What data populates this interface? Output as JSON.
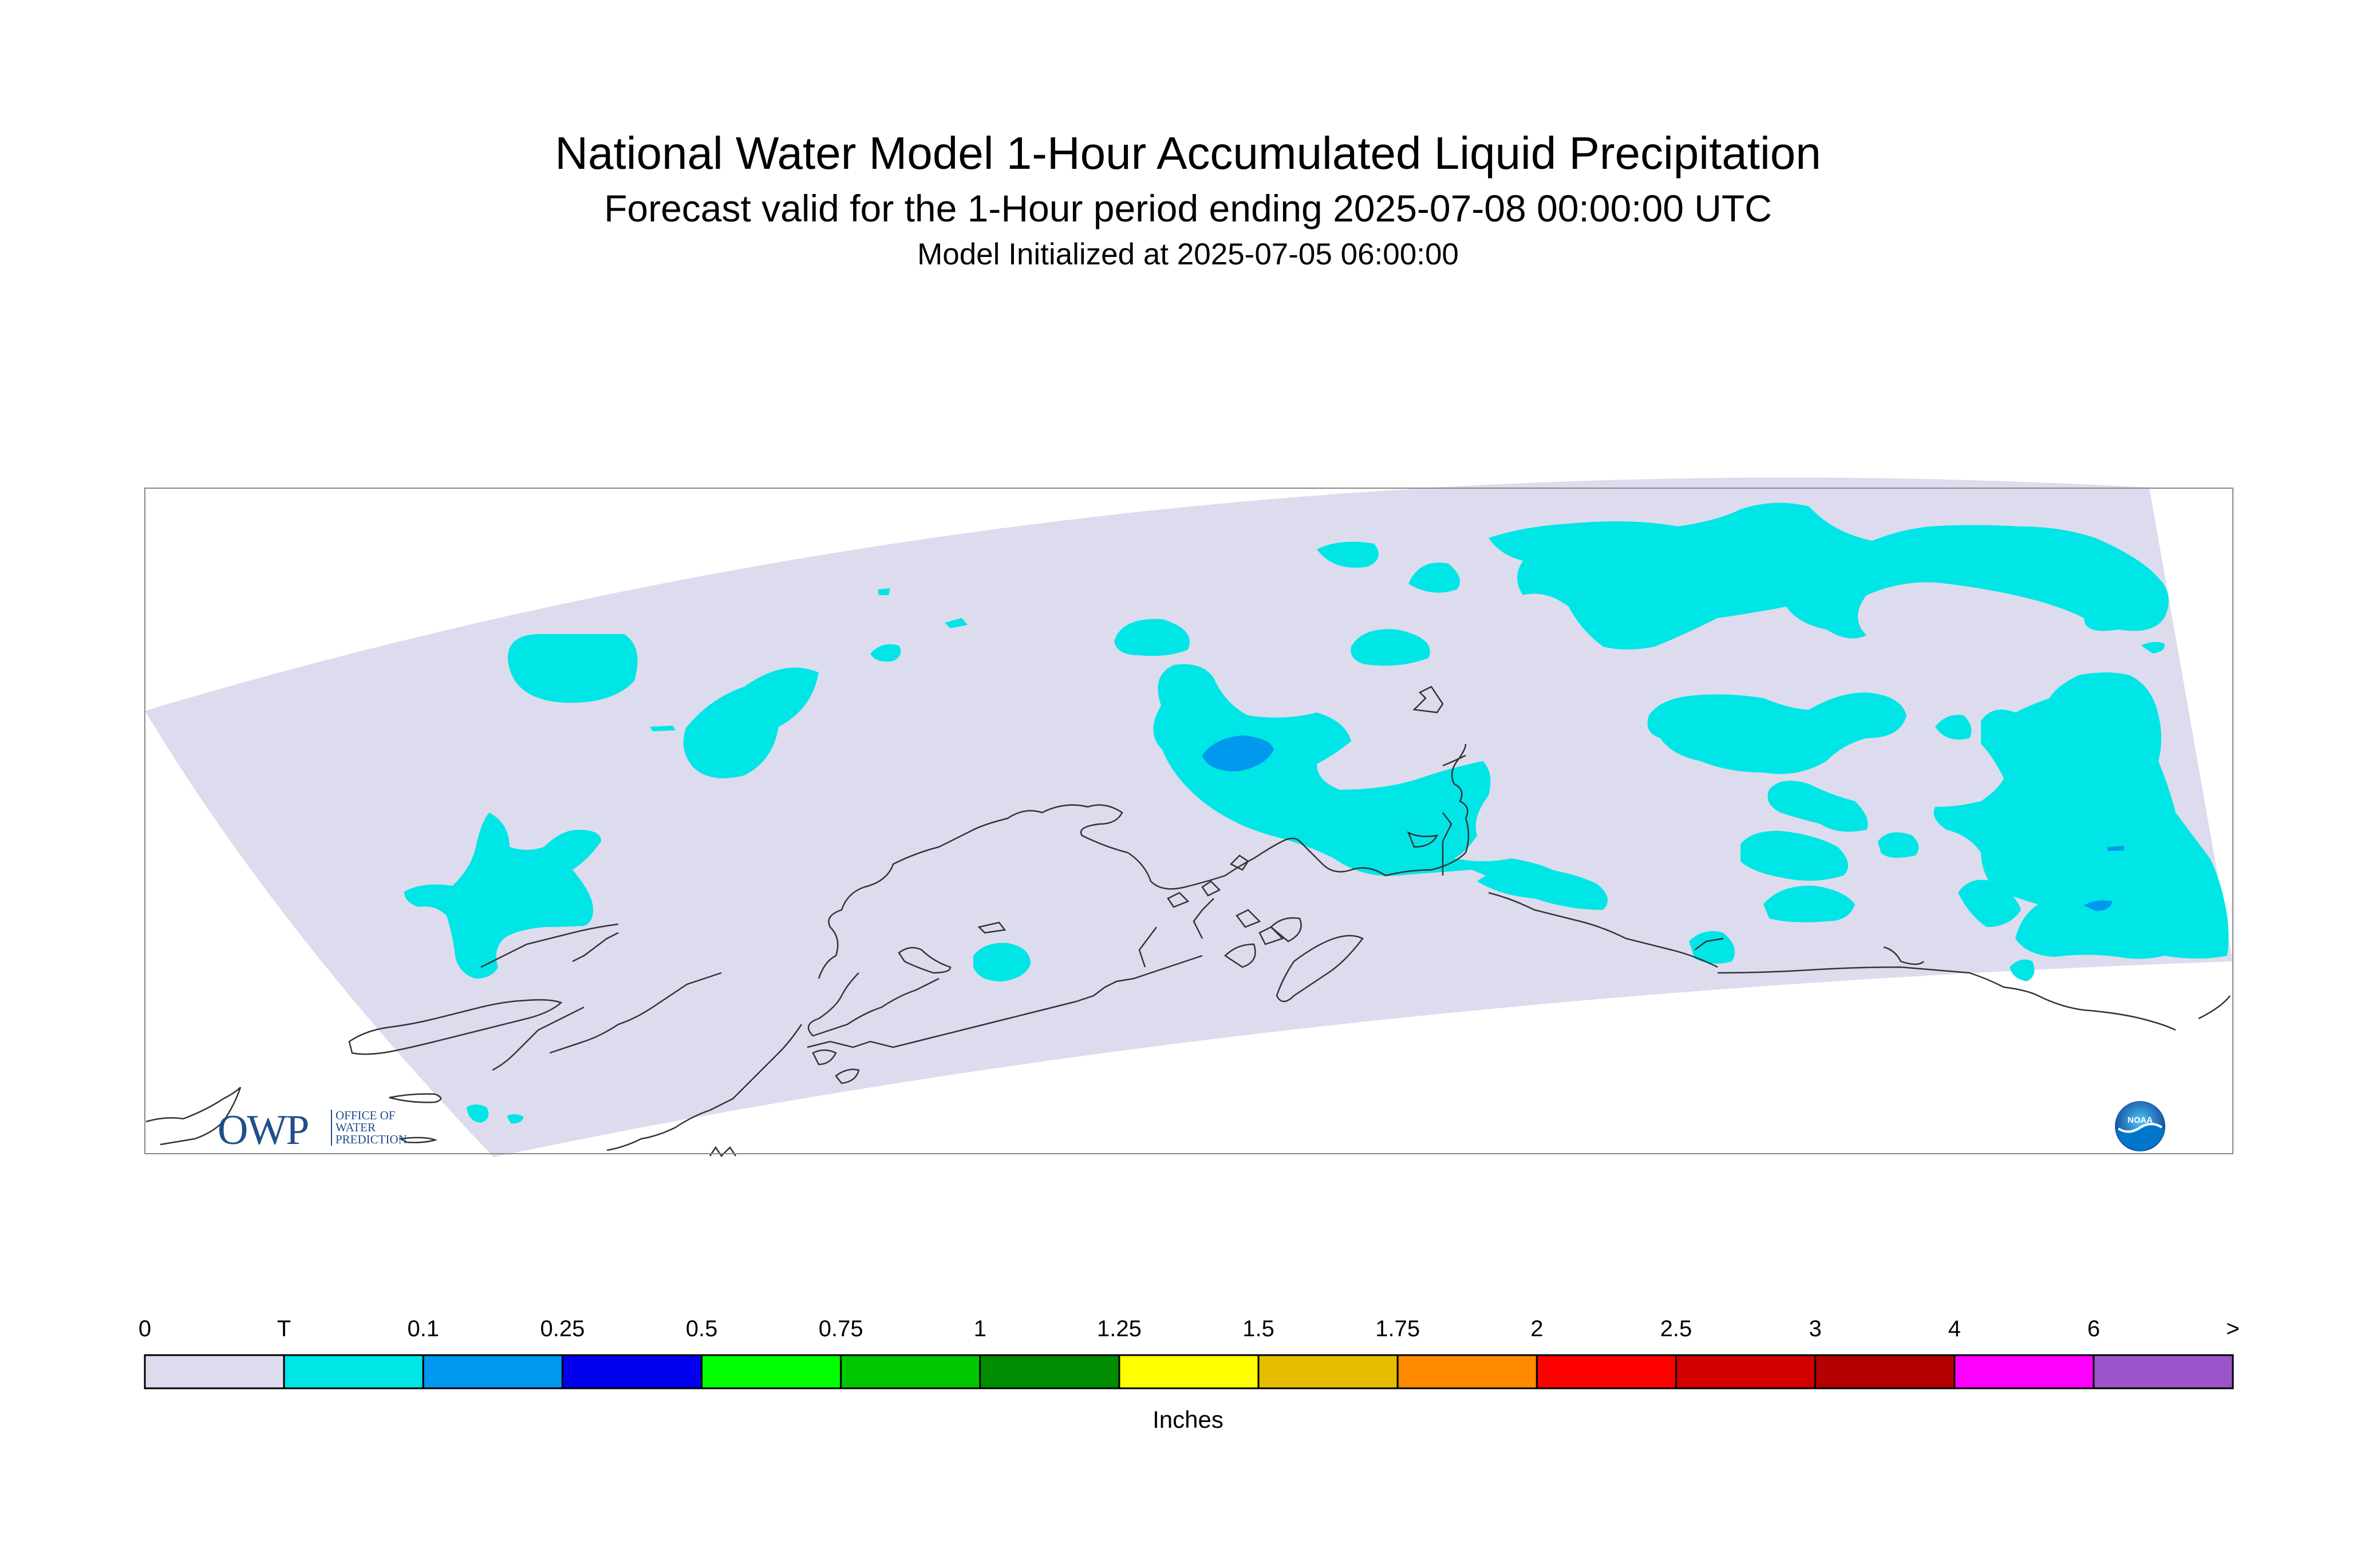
{
  "header": {
    "title": "National Water Model 1-Hour Accumulated Liquid Precipitation",
    "subtitle": "Forecast valid for the 1-Hour period ending 2025-07-08 00:00:00 UTC",
    "init": "Model Initialized at 2025-07-05 06:00:00"
  },
  "map": {
    "region": "Alaska",
    "background_color": "#ffffff",
    "domain_fill_color": "#dcdcee",
    "coastline_color": "#333333",
    "dominant_category": "T",
    "precip_areas": [
      {
        "category": "T",
        "color": "#00e5e5"
      },
      {
        "category": "0.1",
        "color": "#0099ee"
      }
    ]
  },
  "colorbar": {
    "unit_label": "Inches",
    "ticks": [
      "0",
      "T",
      "0.1",
      "0.25",
      "0.5",
      "0.75",
      "1",
      "1.25",
      "1.5",
      "1.75",
      "2",
      "2.5",
      "3",
      "4",
      "6",
      ">"
    ],
    "colors": [
      "#dcdcee",
      "#00e5e5",
      "#0099ee",
      "#0000ee",
      "#00ff00",
      "#00c800",
      "#008c00",
      "#ffff00",
      "#e6be00",
      "#ff8c00",
      "#ff0000",
      "#d20000",
      "#b40000",
      "#ff00ff",
      "#9955c9"
    ]
  },
  "logos": {
    "owp": {
      "main": "OWP",
      "line1": "OFFICE OF",
      "line2": "WATER",
      "line3": "PREDICTION"
    },
    "noaa": {
      "text": "NOAA"
    }
  }
}
